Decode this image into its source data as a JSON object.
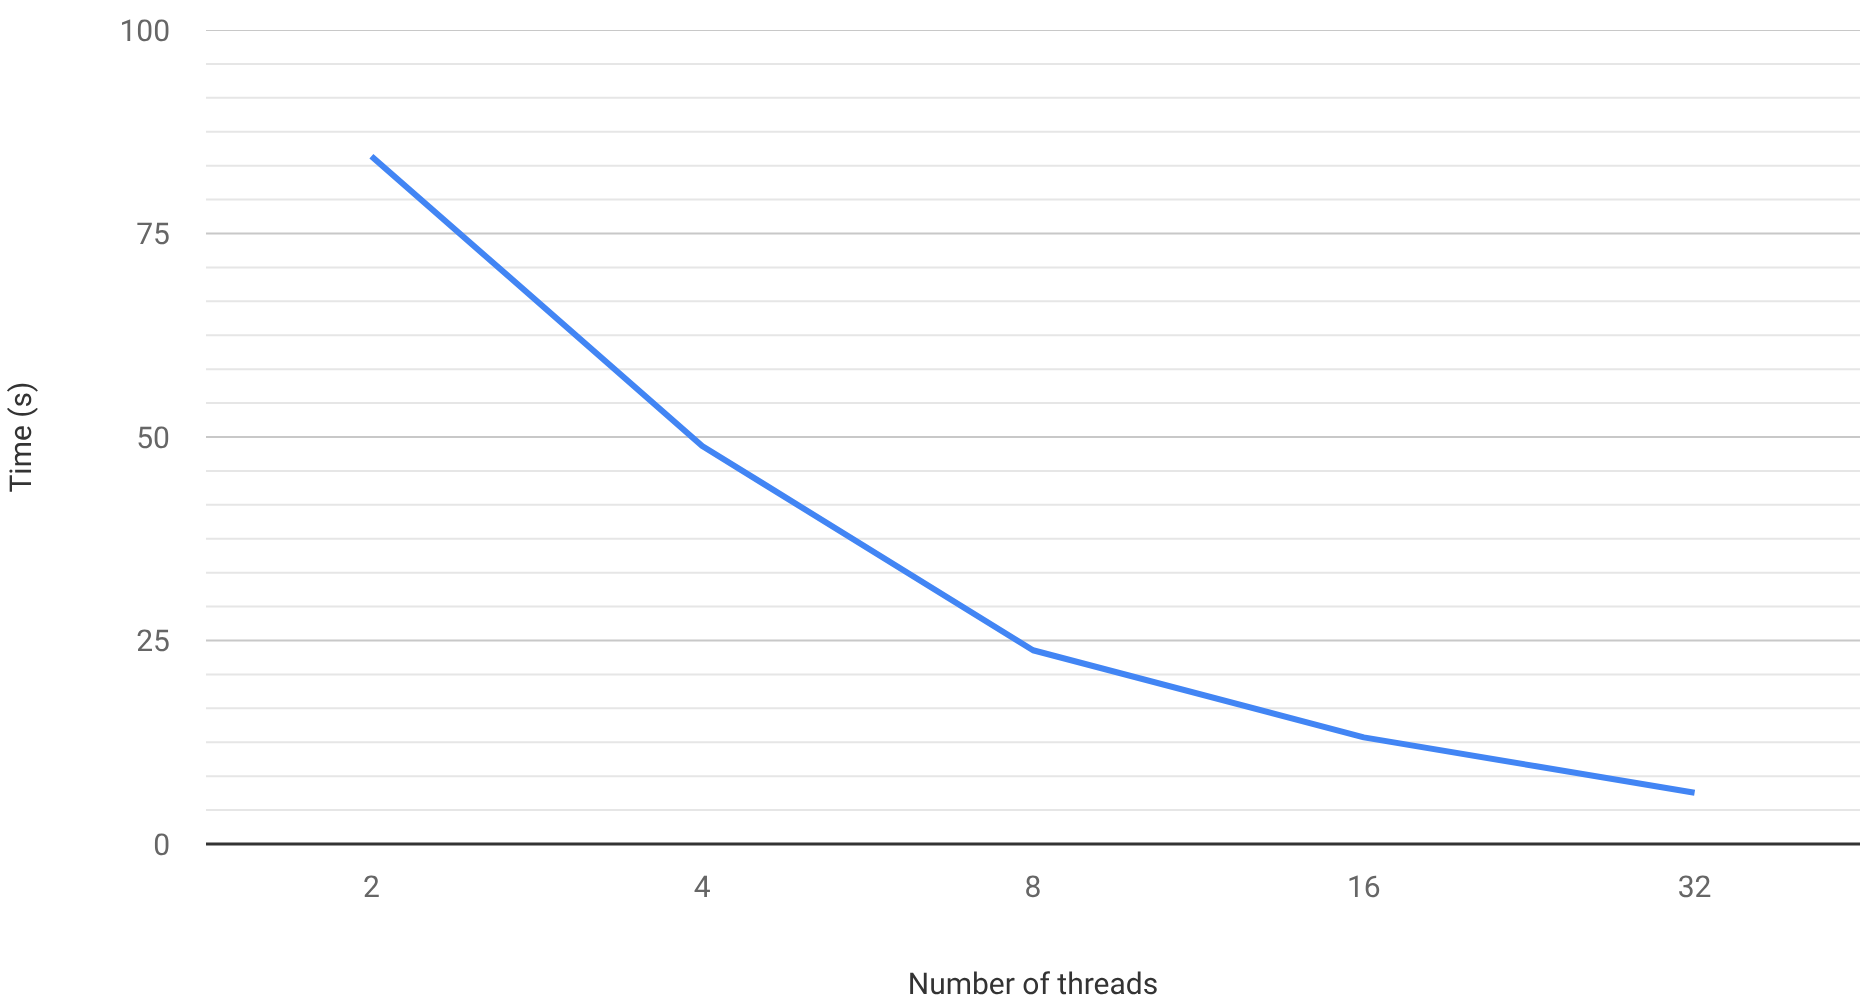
{
  "chart_data": {
    "type": "line",
    "xlabel": "Number of threads",
    "ylabel": "Time (s)",
    "categories": [
      "2",
      "4",
      "8",
      "16",
      "32"
    ],
    "series": [
      {
        "color": "#4285f4",
        "values": [
          84.5,
          48.9,
          23.8,
          13.1,
          6.3
        ]
      }
    ],
    "ylim": [
      0,
      100
    ],
    "yticks": [
      0,
      {
        "value": 4.17,
        "label": null
      },
      {
        "value": 8.33,
        "label": null
      },
      {
        "value": 12.5,
        "label": null
      },
      {
        "value": 16.67,
        "label": null
      },
      {
        "value": 20.83,
        "label": null
      },
      25,
      {
        "value": 29.17,
        "label": null
      },
      {
        "value": 33.33,
        "label": null
      },
      {
        "value": 37.5,
        "label": null
      },
      {
        "value": 41.67,
        "label": null
      },
      {
        "value": 45.83,
        "label": null
      },
      50,
      {
        "value": 54.17,
        "label": null
      },
      {
        "value": 58.33,
        "label": null
      },
      {
        "value": 62.5,
        "label": null
      },
      {
        "value": 66.67,
        "label": null
      },
      {
        "value": 70.83,
        "label": null
      },
      75,
      {
        "value": 79.17,
        "label": null
      },
      {
        "value": 83.33,
        "label": null
      },
      {
        "value": 87.5,
        "label": null
      },
      {
        "value": 91.67,
        "label": null
      },
      {
        "value": 95.83,
        "label": null
      },
      100
    ],
    "grid": "y",
    "marker": "none",
    "line_style": "solid"
  }
}
